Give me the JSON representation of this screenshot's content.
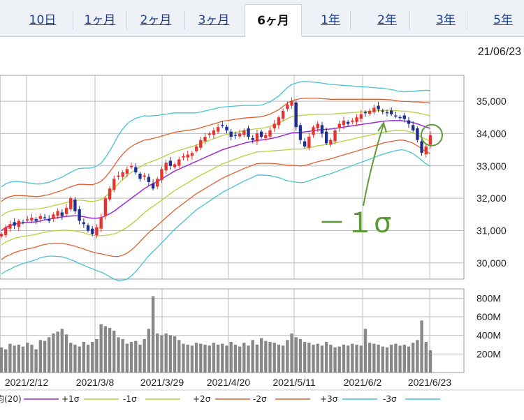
{
  "tabs": [
    {
      "label": "10日",
      "active": false
    },
    {
      "label": "1ヶ月",
      "active": false
    },
    {
      "label": "2ヶ月",
      "active": false
    },
    {
      "label": "3ヶ月",
      "active": false
    },
    {
      "label": "6ヶ月",
      "active": true
    },
    {
      "label": "1年",
      "active": false
    },
    {
      "label": "2年",
      "active": false
    },
    {
      "label": "3年",
      "active": false
    },
    {
      "label": "5年",
      "active": false
    }
  ],
  "date_label": "21/06/23",
  "annotation": "－１σ",
  "legend": [
    {
      "label": "均(20)",
      "color": "#9a2fd0"
    },
    {
      "label": "+1σ",
      "color": "#b7cf3a"
    },
    {
      "label": "-1σ",
      "color": "#b7cf3a"
    },
    {
      "label": "+2σ",
      "color": "#e06030"
    },
    {
      "label": "-2σ",
      "color": "#e06030"
    },
    {
      "label": "+3σ",
      "color": "#47c3d4"
    },
    {
      "label": "-3σ",
      "color": "#47c3d4"
    }
  ],
  "colors": {
    "up": "#e8342f",
    "down": "#1f2f8f",
    "annotation": "#5f9a3a",
    "volume": "#888888"
  },
  "chart_data": {
    "type": "line",
    "price_axis": {
      "ticks": [
        30000,
        31000,
        32000,
        33000,
        34000,
        35000
      ],
      "tick_labels": [
        "30,000",
        "31,000",
        "32,000",
        "33,000",
        "34,000",
        "35,000"
      ],
      "ylim": [
        29500,
        35800
      ]
    },
    "volume_axis": {
      "ticks": [
        200,
        400,
        600,
        800
      ],
      "tick_labels": [
        "200M",
        "400M",
        "600M",
        "800M"
      ],
      "ylim": [
        0,
        900
      ]
    },
    "x_tick_labels": [
      "2021/2/12",
      "2021/3/8",
      "2021/3/29",
      "2021/4/20",
      "2021/5/11",
      "2021/6/2",
      "2021/6/23"
    ],
    "close": [
      30900,
      31100,
      31200,
      31150,
      31300,
      31250,
      31350,
      31400,
      31300,
      31450,
      31400,
      31300,
      31500,
      31600,
      31450,
      31700,
      32000,
      31600,
      31300,
      31200,
      31000,
      30900,
      31100,
      31400,
      32000,
      32300,
      32600,
      32700,
      32800,
      32900,
      33000,
      32800,
      32600,
      32700,
      32500,
      32300,
      32600,
      32900,
      33100,
      33000,
      33050,
      33200,
      33300,
      33350,
      33400,
      33600,
      33800,
      33900,
      34000,
      34100,
      34200,
      34250,
      34100,
      33900,
      33950,
      34000,
      34100,
      33900,
      33800,
      34000,
      33900,
      33950,
      34100,
      34300,
      34500,
      34700,
      34900,
      35000,
      34200,
      33800,
      33600,
      33900,
      34200,
      34300,
      34000,
      33700,
      33800,
      34100,
      34300,
      34400,
      34300,
      34400,
      34500,
      34600,
      34650,
      34700,
      34800,
      34750,
      34700,
      34650,
      34600,
      34550,
      34500,
      34450,
      34300,
      34100,
      33800,
      33400,
      33600,
      33950
    ],
    "volume": [
      270,
      250,
      310,
      290,
      300,
      280,
      320,
      300,
      250,
      350,
      340,
      380,
      420,
      440,
      470,
      410,
      320,
      300,
      280,
      330,
      300,
      330,
      360,
      520,
      500,
      480,
      450,
      380,
      360,
      310,
      330,
      340,
      300,
      360,
      470,
      820,
      420,
      400,
      420,
      400,
      390,
      350,
      310,
      300,
      290,
      320,
      310,
      300,
      290,
      320,
      300,
      310,
      290,
      330,
      300,
      280,
      320,
      290,
      350,
      300,
      370,
      340,
      330,
      320,
      300,
      290,
      350,
      420,
      380,
      360,
      330,
      320,
      300,
      310,
      290,
      330,
      300,
      270,
      280,
      300,
      290,
      310,
      300,
      290,
      470,
      320,
      310,
      300,
      280,
      270,
      300,
      310,
      290,
      300,
      280,
      320,
      350,
      560,
      330,
      240
    ],
    "ma20": [
      31000,
      31100,
      31150,
      31200,
      31220,
      31240,
      31250,
      31260,
      31270,
      31300,
      31330,
      31350,
      31380,
      31400,
      31420,
      31440,
      31450,
      31460,
      31450,
      31430,
      31400,
      31380,
      31380,
      31400,
      31450,
      31520,
      31600,
      31700,
      31800,
      31900,
      32000,
      32100,
      32200,
      32300,
      32380,
      32450,
      32520,
      32600,
      32680,
      32760,
      32840,
      32900,
      32960,
      33020,
      33080,
      33140,
      33200,
      33260,
      33320,
      33380,
      33440,
      33500,
      33540,
      33580,
      33620,
      33660,
      33700,
      33730,
      33760,
      33790,
      33800,
      33820,
      33840,
      33870,
      33900,
      33940,
      33980,
      34020,
      34030,
      34040,
      34050,
      34070,
      34090,
      34110,
      34120,
      34130,
      34140,
      34160,
      34180,
      34200,
      34220,
      34240,
      34260,
      34280,
      34300,
      34320,
      34340,
      34360,
      34380,
      34390,
      34400,
      34400,
      34400,
      34390,
      34370,
      34340,
      34300,
      34250,
      34200,
      34160
    ],
    "sigma": [
      450,
      450,
      450,
      440,
      430,
      420,
      410,
      400,
      390,
      380,
      380,
      380,
      390,
      400,
      410,
      430,
      450,
      470,
      490,
      500,
      510,
      520,
      540,
      560,
      600,
      650,
      700,
      750,
      780,
      800,
      800,
      790,
      770,
      750,
      720,
      700,
      680,
      660,
      640,
      620,
      600,
      580,
      560,
      540,
      520,
      500,
      490,
      480,
      470,
      460,
      450,
      440,
      430,
      420,
      410,
      400,
      390,
      380,
      370,
      360,
      360,
      370,
      380,
      400,
      420,
      450,
      480,
      500,
      510,
      520,
      520,
      510,
      500,
      490,
      480,
      470,
      460,
      450,
      440,
      430,
      420,
      410,
      400,
      390,
      380,
      370,
      360,
      350,
      340,
      330,
      320,
      310,
      300,
      300,
      310,
      320,
      340,
      360,
      380,
      390
    ],
    "annotation_text": "－１σ"
  }
}
